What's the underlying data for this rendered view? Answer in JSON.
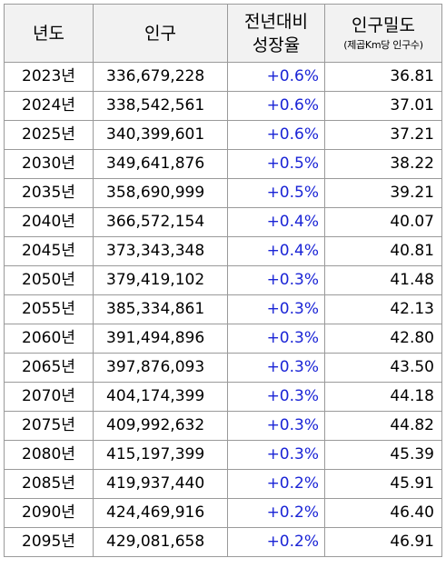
{
  "headers": {
    "year": "년도",
    "population": "인구",
    "growth_line1": "전년대비",
    "growth_line2": "성장율",
    "density_line1": "인구밀도",
    "density_line2": "(제곱Km당 인구수)"
  },
  "rows": [
    {
      "year": "2023년",
      "population": "336,679,228",
      "growth": "+0.6%",
      "density": "36.81"
    },
    {
      "year": "2024년",
      "population": "338,542,561",
      "growth": "+0.6%",
      "density": "37.01"
    },
    {
      "year": "2025년",
      "population": "340,399,601",
      "growth": "+0.6%",
      "density": "37.21"
    },
    {
      "year": "2030년",
      "population": "349,641,876",
      "growth": "+0.5%",
      "density": "38.22"
    },
    {
      "year": "2035년",
      "population": "358,690,999",
      "growth": "+0.5%",
      "density": "39.21"
    },
    {
      "year": "2040년",
      "population": "366,572,154",
      "growth": "+0.4%",
      "density": "40.07"
    },
    {
      "year": "2045년",
      "population": "373,343,348",
      "growth": "+0.4%",
      "density": "40.81"
    },
    {
      "year": "2050년",
      "population": "379,419,102",
      "growth": "+0.3%",
      "density": "41.48"
    },
    {
      "year": "2055년",
      "population": "385,334,861",
      "growth": "+0.3%",
      "density": "42.13"
    },
    {
      "year": "2060년",
      "population": "391,494,896",
      "growth": "+0.3%",
      "density": "42.80"
    },
    {
      "year": "2065년",
      "population": "397,876,093",
      "growth": "+0.3%",
      "density": "43.50"
    },
    {
      "year": "2070년",
      "population": "404,174,399",
      "growth": "+0.3%",
      "density": "44.18"
    },
    {
      "year": "2075년",
      "population": "409,992,632",
      "growth": "+0.3%",
      "density": "44.82"
    },
    {
      "year": "2080년",
      "population": "415,197,399",
      "growth": "+0.3%",
      "density": "45.39"
    },
    {
      "year": "2085년",
      "population": "419,937,440",
      "growth": "+0.2%",
      "density": "45.91"
    },
    {
      "year": "2090년",
      "population": "424,469,916",
      "growth": "+0.2%",
      "density": "46.40"
    },
    {
      "year": "2095년",
      "population": "429,081,658",
      "growth": "+0.2%",
      "density": "46.91"
    }
  ],
  "colors": {
    "growth_text": "#1a24d6",
    "header_bg": "#f2f2f2",
    "border": "#9a9a9a"
  }
}
